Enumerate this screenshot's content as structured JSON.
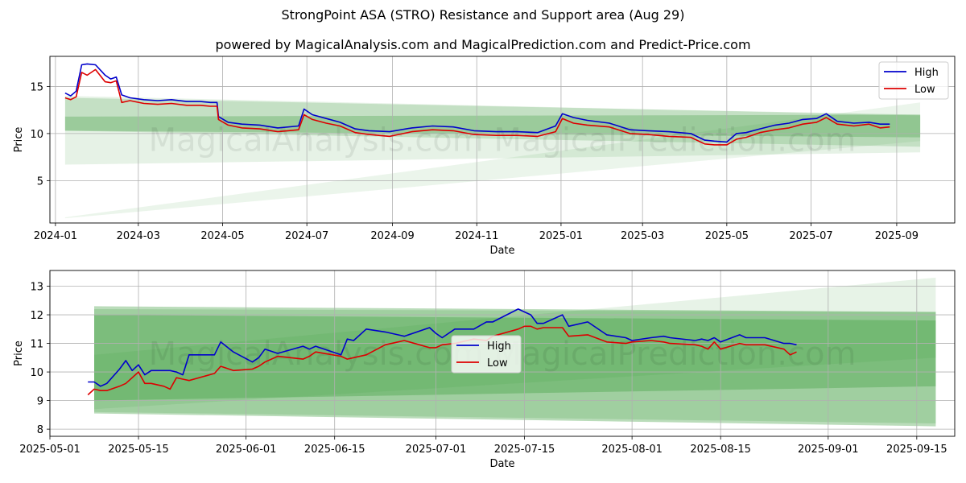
{
  "title": "StrongPoint ASA (STRO) Resistance and Support area (Aug 29)",
  "subtitle": "powered by MagicalAnalysis.com and MagicalPrediction.com and Predict-Price.com",
  "watermark": "MagicalAnalysis.com   MagicalPrediction.com",
  "colors": {
    "high": "#0000cc",
    "low": "#dd0000",
    "band": "#3a9a3a",
    "grid": "#b0b0b0"
  },
  "chart_data": [
    {
      "type": "line",
      "xlabel": "Date",
      "ylabel": "Price",
      "x_axis": "date",
      "xlim": [
        "2023-12-28",
        "2025-10-13"
      ],
      "ylim": [
        0.5,
        18.2
      ],
      "xticks": [
        "2024-01",
        "2024-03",
        "2024-05",
        "2024-07",
        "2024-09",
        "2024-11",
        "2025-01",
        "2025-03",
        "2025-05",
        "2025-07",
        "2025-09"
      ],
      "yticks": [
        5,
        10,
        15
      ],
      "grid": true,
      "legend": "top-right",
      "bands": [
        {
          "x": [
            "2024-01-08",
            "2025-09-18"
          ],
          "upper": [
            14.0,
            11.9
          ],
          "lower": [
            6.7,
            8.0
          ],
          "opacity": 0.13
        },
        {
          "x": [
            "2024-01-08",
            "2025-09-18"
          ],
          "upper": [
            13.8,
            12.0
          ],
          "lower": [
            10.3,
            8.6
          ],
          "opacity": 0.2
        },
        {
          "x": [
            "2024-01-08",
            "2025-09-18"
          ],
          "upper": [
            11.8,
            12.0
          ],
          "lower": [
            10.3,
            9.6
          ],
          "opacity": 0.3
        },
        {
          "x": [
            "2024-01-08",
            "2025-09-18"
          ],
          "upper": [
            1.1,
            13.3
          ],
          "lower": [
            1.0,
            9.2
          ],
          "opacity": 0.1
        }
      ],
      "series": [
        {
          "name": "High",
          "x": [
            "2024-01-08",
            "2024-01-12",
            "2024-01-16",
            "2024-01-20",
            "2024-01-24",
            "2024-01-30",
            "2024-02-06",
            "2024-02-10",
            "2024-02-14",
            "2024-02-18",
            "2024-02-24",
            "2024-03-05",
            "2024-03-15",
            "2024-03-25",
            "2024-04-05",
            "2024-04-15",
            "2024-04-22",
            "2024-04-27",
            "2024-04-28",
            "2024-05-05",
            "2024-05-15",
            "2024-05-28",
            "2024-06-10",
            "2024-06-25",
            "2024-06-29",
            "2024-07-05",
            "2024-07-15",
            "2024-07-25",
            "2024-08-05",
            "2024-08-15",
            "2024-08-30",
            "2024-09-15",
            "2024-09-30",
            "2024-10-15",
            "2024-10-30",
            "2024-11-15",
            "2024-11-30",
            "2024-12-15",
            "2024-12-28",
            "2025-01-02",
            "2025-01-10",
            "2025-01-20",
            "2025-02-05",
            "2025-02-20",
            "2025-03-05",
            "2025-03-20",
            "2025-04-05",
            "2025-04-15",
            "2025-04-22",
            "2025-05-01",
            "2025-05-08",
            "2025-05-15",
            "2025-05-25",
            "2025-06-05",
            "2025-06-15",
            "2025-06-25",
            "2025-07-05",
            "2025-07-12",
            "2025-07-20",
            "2025-08-01",
            "2025-08-12",
            "2025-08-20",
            "2025-08-27"
          ],
          "values": [
            14.3,
            14.0,
            14.5,
            17.3,
            17.4,
            17.3,
            16.2,
            15.8,
            16.0,
            14.1,
            13.8,
            13.6,
            13.5,
            13.6,
            13.4,
            13.4,
            13.3,
            13.3,
            11.8,
            11.2,
            11.0,
            10.9,
            10.6,
            10.8,
            12.6,
            12.0,
            11.6,
            11.2,
            10.5,
            10.3,
            10.2,
            10.6,
            10.8,
            10.7,
            10.3,
            10.2,
            10.2,
            10.1,
            10.8,
            12.1,
            11.7,
            11.4,
            11.1,
            10.4,
            10.3,
            10.2,
            10.0,
            9.3,
            9.2,
            9.1,
            10.0,
            10.1,
            10.5,
            10.9,
            11.1,
            11.5,
            11.6,
            12.1,
            11.3,
            11.1,
            11.2,
            11.0,
            11.0
          ]
        },
        {
          "name": "Low",
          "x": [
            "2024-01-08",
            "2024-01-12",
            "2024-01-16",
            "2024-01-20",
            "2024-01-24",
            "2024-01-30",
            "2024-02-06",
            "2024-02-10",
            "2024-02-14",
            "2024-02-18",
            "2024-02-24",
            "2024-03-05",
            "2024-03-15",
            "2024-03-25",
            "2024-04-05",
            "2024-04-15",
            "2024-04-22",
            "2024-04-27",
            "2024-04-28",
            "2024-05-05",
            "2024-05-15",
            "2024-05-28",
            "2024-06-10",
            "2024-06-25",
            "2024-06-29",
            "2024-07-05",
            "2024-07-15",
            "2024-07-25",
            "2024-08-05",
            "2024-08-15",
            "2024-08-30",
            "2024-09-15",
            "2024-09-30",
            "2024-10-15",
            "2024-10-30",
            "2024-11-15",
            "2024-11-30",
            "2024-12-15",
            "2024-12-28",
            "2025-01-02",
            "2025-01-10",
            "2025-01-20",
            "2025-02-05",
            "2025-02-20",
            "2025-03-05",
            "2025-03-20",
            "2025-04-05",
            "2025-04-15",
            "2025-04-22",
            "2025-05-01",
            "2025-05-08",
            "2025-05-15",
            "2025-05-25",
            "2025-06-05",
            "2025-06-15",
            "2025-06-25",
            "2025-07-05",
            "2025-07-12",
            "2025-07-20",
            "2025-08-01",
            "2025-08-12",
            "2025-08-20",
            "2025-08-27"
          ],
          "values": [
            13.8,
            13.6,
            13.9,
            16.5,
            16.2,
            16.8,
            15.5,
            15.4,
            15.6,
            13.3,
            13.5,
            13.2,
            13.1,
            13.2,
            13.0,
            13.0,
            12.9,
            12.9,
            11.5,
            10.9,
            10.6,
            10.5,
            10.2,
            10.4,
            12.0,
            11.5,
            11.1,
            10.8,
            10.1,
            9.9,
            9.7,
            10.2,
            10.4,
            10.3,
            9.9,
            9.8,
            9.8,
            9.7,
            10.2,
            11.6,
            11.1,
            10.9,
            10.7,
            10.0,
            9.9,
            9.7,
            9.6,
            8.9,
            8.8,
            8.8,
            9.4,
            9.6,
            10.1,
            10.4,
            10.6,
            11.0,
            11.2,
            11.7,
            11.0,
            10.8,
            11.0,
            10.6,
            10.7
          ]
        }
      ]
    },
    {
      "type": "line",
      "xlabel": "Date",
      "ylabel": "Price",
      "x_axis": "date",
      "xlim": [
        "2025-05-01",
        "2025-09-21"
      ],
      "ylim": [
        7.75,
        13.55
      ],
      "xticks": [
        "2025-05-01",
        "2025-05-15",
        "2025-06-01",
        "2025-06-15",
        "2025-07-01",
        "2025-07-15",
        "2025-08-01",
        "2025-08-15",
        "2025-09-01",
        "2025-09-15"
      ],
      "yticks": [
        8,
        9,
        10,
        11,
        12,
        13
      ],
      "grid": true,
      "legend": "center",
      "bands": [
        {
          "x": [
            "2025-05-08",
            "2025-09-18"
          ],
          "upper": [
            12.3,
            12.1
          ],
          "lower": [
            8.55,
            8.1
          ],
          "opacity": 0.35
        },
        {
          "x": [
            "2025-05-08",
            "2025-09-18"
          ],
          "upper": [
            12.2,
            12.1
          ],
          "lower": [
            8.6,
            8.2
          ],
          "opacity": 0.2
        },
        {
          "x": [
            "2025-05-08",
            "2025-09-18"
          ],
          "upper": [
            12.0,
            11.8
          ],
          "lower": [
            9.0,
            9.5
          ],
          "opacity": 0.35
        },
        {
          "x": [
            "2025-05-08",
            "2025-09-18"
          ],
          "upper": [
            10.6,
            13.3
          ],
          "lower": [
            8.7,
            10.5
          ],
          "opacity": 0.12
        }
      ],
      "series": [
        {
          "name": "High",
          "x": [
            "2025-05-07",
            "2025-05-08",
            "2025-05-09",
            "2025-05-10",
            "2025-05-12",
            "2025-05-13",
            "2025-05-14",
            "2025-05-15",
            "2025-05-16",
            "2025-05-17",
            "2025-05-19",
            "2025-05-20",
            "2025-05-21",
            "2025-05-22",
            "2025-05-23",
            "2025-05-27",
            "2025-05-28",
            "2025-05-30",
            "2025-06-02",
            "2025-06-03",
            "2025-06-04",
            "2025-06-06",
            "2025-06-10",
            "2025-06-11",
            "2025-06-12",
            "2025-06-16",
            "2025-06-17",
            "2025-06-18",
            "2025-06-20",
            "2025-06-23",
            "2025-06-25",
            "2025-06-26",
            "2025-06-30",
            "2025-07-01",
            "2025-07-02",
            "2025-07-04",
            "2025-07-07",
            "2025-07-09",
            "2025-07-10",
            "2025-07-14",
            "2025-07-15",
            "2025-07-16",
            "2025-07-17",
            "2025-07-18",
            "2025-07-21",
            "2025-07-22",
            "2025-07-25",
            "2025-07-28",
            "2025-07-31",
            "2025-08-01",
            "2025-08-04",
            "2025-08-06",
            "2025-08-07",
            "2025-08-11",
            "2025-08-12",
            "2025-08-13",
            "2025-08-14",
            "2025-08-15",
            "2025-08-18",
            "2025-08-19",
            "2025-08-22",
            "2025-08-25",
            "2025-08-26",
            "2025-08-27"
          ],
          "values": [
            9.65,
            9.65,
            9.5,
            9.6,
            10.1,
            10.4,
            10.05,
            10.25,
            9.9,
            10.05,
            10.05,
            10.05,
            10.0,
            9.9,
            10.6,
            10.6,
            11.05,
            10.7,
            10.35,
            10.5,
            10.8,
            10.65,
            10.9,
            10.8,
            10.9,
            10.6,
            11.15,
            11.1,
            11.5,
            11.4,
            11.3,
            11.25,
            11.55,
            11.35,
            11.2,
            11.5,
            11.5,
            11.75,
            11.75,
            12.2,
            12.1,
            12.0,
            11.7,
            11.7,
            12.0,
            11.6,
            11.75,
            11.3,
            11.2,
            11.1,
            11.2,
            11.25,
            11.2,
            11.1,
            11.15,
            11.1,
            11.2,
            11.05,
            11.3,
            11.2,
            11.2,
            11.0,
            11.0,
            10.95
          ]
        },
        {
          "name": "Low",
          "x": [
            "2025-05-07",
            "2025-05-08",
            "2025-05-09",
            "2025-05-10",
            "2025-05-12",
            "2025-05-13",
            "2025-05-14",
            "2025-05-15",
            "2025-05-16",
            "2025-05-17",
            "2025-05-19",
            "2025-05-20",
            "2025-05-21",
            "2025-05-22",
            "2025-05-23",
            "2025-05-27",
            "2025-05-28",
            "2025-05-30",
            "2025-06-02",
            "2025-06-03",
            "2025-06-04",
            "2025-06-06",
            "2025-06-10",
            "2025-06-11",
            "2025-06-12",
            "2025-06-16",
            "2025-06-17",
            "2025-06-18",
            "2025-06-20",
            "2025-06-23",
            "2025-06-25",
            "2025-06-26",
            "2025-06-30",
            "2025-07-01",
            "2025-07-02",
            "2025-07-04",
            "2025-07-07",
            "2025-07-09",
            "2025-07-10",
            "2025-07-14",
            "2025-07-15",
            "2025-07-16",
            "2025-07-17",
            "2025-07-18",
            "2025-07-21",
            "2025-07-22",
            "2025-07-25",
            "2025-07-28",
            "2025-07-31",
            "2025-08-01",
            "2025-08-04",
            "2025-08-06",
            "2025-08-07",
            "2025-08-11",
            "2025-08-12",
            "2025-08-13",
            "2025-08-14",
            "2025-08-15",
            "2025-08-18",
            "2025-08-19",
            "2025-08-22",
            "2025-08-25",
            "2025-08-26",
            "2025-08-27"
          ],
          "values": [
            9.2,
            9.4,
            9.35,
            9.35,
            9.5,
            9.6,
            9.8,
            10.0,
            9.6,
            9.6,
            9.5,
            9.4,
            9.8,
            9.75,
            9.7,
            9.95,
            10.2,
            10.05,
            10.1,
            10.2,
            10.35,
            10.55,
            10.45,
            10.55,
            10.7,
            10.55,
            10.45,
            10.5,
            10.6,
            10.95,
            11.05,
            11.1,
            10.85,
            10.85,
            10.95,
            11.0,
            11.15,
            11.1,
            11.25,
            11.5,
            11.6,
            11.6,
            11.5,
            11.55,
            11.55,
            11.25,
            11.3,
            11.05,
            11.0,
            11.05,
            11.1,
            11.05,
            11.0,
            10.95,
            10.9,
            10.8,
            11.05,
            10.8,
            11.0,
            10.95,
            10.95,
            10.8,
            10.6,
            10.7
          ]
        }
      ]
    }
  ]
}
